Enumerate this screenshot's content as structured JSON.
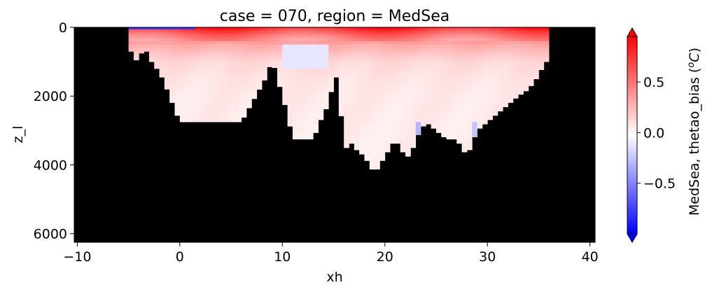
{
  "chart_data": {
    "type": "heatmap",
    "title": "case = 070, region = MedSea",
    "xlabel": "xh",
    "ylabel": "z_l",
    "xlim": [
      -10.3,
      40.5
    ],
    "ylim": [
      6250,
      0
    ],
    "y_inverted": true,
    "x_ticks": [
      -10,
      0,
      10,
      20,
      30,
      40
    ],
    "x_tick_labels": [
      "−10",
      "0",
      "10",
      "20",
      "30",
      "40"
    ],
    "y_ticks": [
      0,
      2000,
      4000,
      6000
    ],
    "y_tick_labels": [
      "0",
      "2000",
      "4000",
      "6000"
    ],
    "background_color": "#000000",
    "colormap": "bwr",
    "colorbar": {
      "label": "MedSea, thetao_bias (",
      "label_unit_base": "C",
      "label_unit_sup": "o",
      "label_close": ")",
      "vmin": -1.0,
      "vmax": 0.95,
      "ticks": [
        -0.5,
        0.0,
        0.5
      ],
      "tick_labels": [
        "−0.5",
        "0.0",
        "0.5"
      ],
      "extend": "both"
    },
    "depth_profile": {
      "x": [
        -5,
        -4.5,
        -4,
        -3.5,
        -3,
        -2.5,
        -2,
        -1.5,
        -1,
        0,
        2,
        4,
        6,
        8.5,
        9,
        10,
        10.5,
        11,
        12,
        13,
        14,
        14.5,
        15,
        15.5,
        16,
        16.5,
        17,
        18,
        19,
        20,
        21,
        22,
        22.5,
        23,
        24,
        25,
        26,
        27,
        28,
        29,
        30,
        31,
        32,
        33,
        34,
        35,
        35.6
      ],
      "max_depth": [
        500,
        900,
        1000,
        500,
        900,
        1100,
        1300,
        1600,
        2000,
        2750,
        2750,
        2750,
        2750,
        1400,
        900,
        2000,
        2500,
        3250,
        3250,
        3250,
        2500,
        2250,
        1500,
        1400,
        3750,
        3250,
        3500,
        3750,
        4250,
        3750,
        3250,
        3750,
        3750,
        3250,
        2750,
        3000,
        3250,
        3250,
        3750,
        3000,
        2750,
        2500,
        2250,
        2000,
        1800,
        1400,
        1000
      ]
    },
    "values_by_depth": {
      "depth": [
        0,
        50,
        200,
        500,
        1000,
        1500,
        2000,
        3000,
        4000
      ],
      "bias": [
        0.85,
        0.75,
        0.55,
        0.3,
        0.12,
        0.08,
        0.06,
        0.05,
        0.04
      ]
    },
    "anomalies": [
      {
        "x": [
          -5,
          1.5
        ],
        "depth": [
          0,
          60
        ],
        "bias": -0.8
      },
      {
        "x": [
          10,
          14.5
        ],
        "depth": [
          500,
          1200
        ],
        "bias": -0.12
      },
      {
        "x": [
          23,
          23.5
        ],
        "depth": [
          2750,
          3250
        ],
        "bias": -0.3
      },
      {
        "x": [
          28.5,
          29
        ],
        "depth": [
          2750,
          3500
        ],
        "bias": -0.25
      }
    ]
  }
}
